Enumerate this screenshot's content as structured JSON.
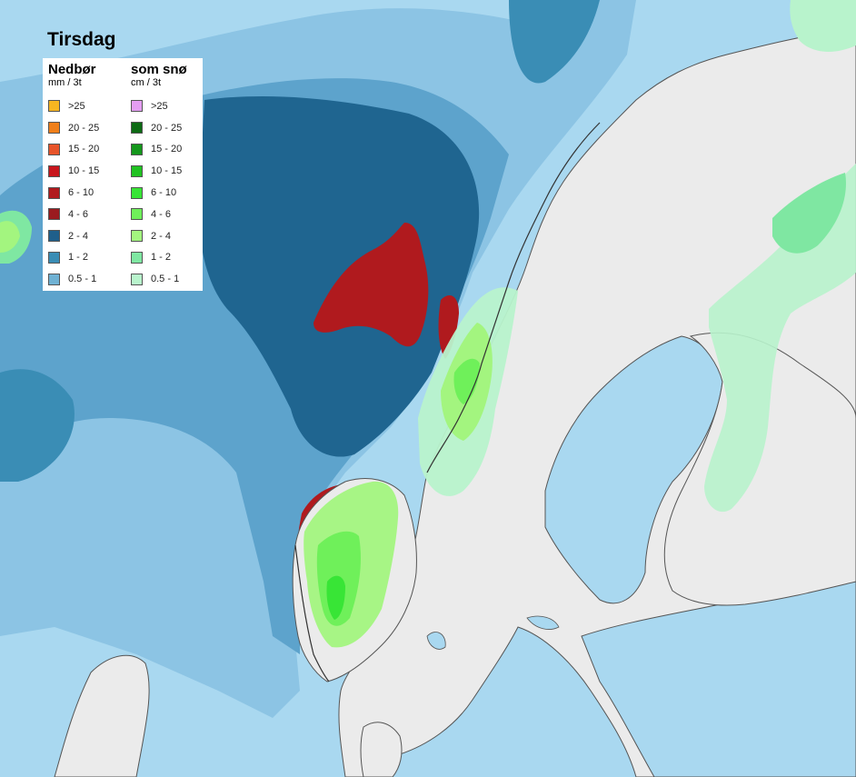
{
  "title": "Tirsdag",
  "legend": {
    "precip": {
      "heading": "Nedbør",
      "unit": "mm / 3t",
      "items": [
        {
          "label": ">25",
          "color": "#f7b521"
        },
        {
          "label": "20 - 25",
          "color": "#ef7f1a"
        },
        {
          "label": "15 - 20",
          "color": "#e8542a"
        },
        {
          "label": "10 - 15",
          "color": "#c8161d"
        },
        {
          "label": "6 - 10",
          "color": "#b01a1e"
        },
        {
          "label": "4 - 6",
          "color": "#9a1b1f"
        },
        {
          "label": "2 - 4",
          "color": "#1f5f8b"
        },
        {
          "label": "1 - 2",
          "color": "#3a8db5"
        },
        {
          "label": "0.5 - 1",
          "color": "#6fb1d3"
        }
      ]
    },
    "snow": {
      "heading": "som snø",
      "unit": "cm / 3t",
      "items": [
        {
          "label": ">25",
          "color": "#e49ef2"
        },
        {
          "label": "20 - 25",
          "color": "#0d6a14"
        },
        {
          "label": "15 - 20",
          "color": "#14971c"
        },
        {
          "label": "10 - 15",
          "color": "#21c222"
        },
        {
          "label": "6 - 10",
          "color": "#38e536"
        },
        {
          "label": "4 - 6",
          "color": "#6ff05a"
        },
        {
          "label": "2 - 4",
          "color": "#a3f57f"
        },
        {
          "label": "1 - 2",
          "color": "#7fe7a2"
        },
        {
          "label": "0.5 - 1",
          "color": "#b8f3cc"
        }
      ]
    }
  }
}
